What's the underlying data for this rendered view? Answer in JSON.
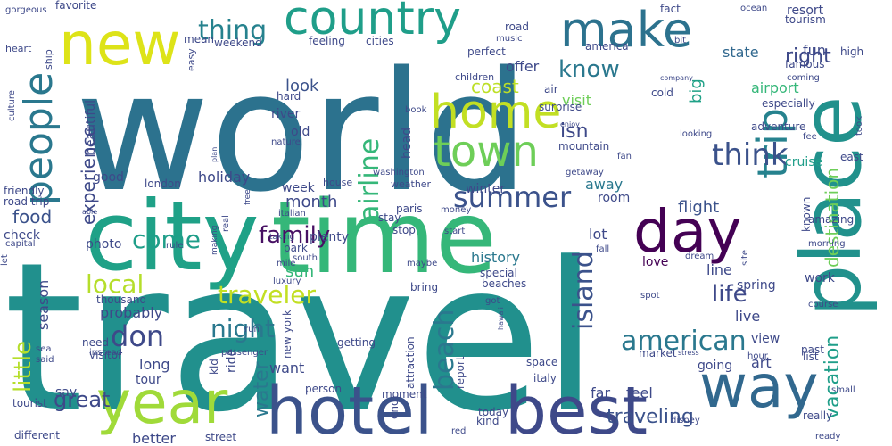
{
  "title": "Word cloud",
  "palette": [
    "#440154",
    "#482878",
    "#3e4989",
    "#31688e",
    "#26828e",
    "#1f9e89",
    "#35b779",
    "#6ece58",
    "#b5de2b",
    "#fde725"
  ],
  "words": [
    {
      "id": "travel",
      "text": "travel",
      "color": "#21908d"
    },
    {
      "id": "world",
      "text": "world",
      "color": "#2c728e"
    },
    {
      "id": "time",
      "text": "time",
      "color": "#35b779"
    },
    {
      "id": "city",
      "text": "city",
      "color": "#1fa187"
    },
    {
      "id": "place",
      "text": "place",
      "color": "#21918c"
    },
    {
      "id": "hotel",
      "text": "hotel",
      "color": "#3b528b"
    },
    {
      "id": "best",
      "text": "best",
      "color": "#3e4989"
    },
    {
      "id": "year",
      "text": "year",
      "color": "#a0da39"
    },
    {
      "id": "way",
      "text": "way",
      "color": "#31688e"
    },
    {
      "id": "day",
      "text": "day",
      "color": "#440154"
    },
    {
      "id": "new",
      "text": "new",
      "color": "#dde318"
    },
    {
      "id": "country",
      "text": "country",
      "color": "#1f9e89"
    },
    {
      "id": "make",
      "text": "make",
      "color": "#2c728e"
    },
    {
      "id": "home",
      "text": "home",
      "color": "#c2df23"
    },
    {
      "id": "town",
      "text": "town",
      "color": "#6ece58"
    },
    {
      "id": "people",
      "text": "people",
      "color": "#2a788e"
    },
    {
      "id": "trip",
      "text": "trip",
      "color": "#26828e"
    },
    {
      "id": "thing",
      "text": "thing",
      "color": "#26828e"
    },
    {
      "id": "know",
      "text": "know",
      "color": "#2a788e"
    },
    {
      "id": "think",
      "text": "think",
      "color": "#3b528b"
    },
    {
      "id": "summer",
      "text": "summer",
      "color": "#3b528b"
    },
    {
      "id": "come",
      "text": "come",
      "color": "#1f9e89"
    },
    {
      "id": "family",
      "text": "family",
      "color": "#471063"
    },
    {
      "id": "local",
      "text": "local",
      "color": "#b5de2b"
    },
    {
      "id": "american",
      "text": "american",
      "color": "#2a788e"
    },
    {
      "id": "don",
      "text": "don",
      "color": "#3e4989"
    },
    {
      "id": "night",
      "text": "night",
      "color": "#2a788e"
    },
    {
      "id": "traveler",
      "text": "traveler",
      "color": "#c2df23"
    },
    {
      "id": "beach",
      "text": "beach",
      "color": "#2a788e"
    },
    {
      "id": "island",
      "text": "island",
      "color": "#3b528b"
    },
    {
      "id": "airline",
      "text": "airline",
      "color": "#35b779"
    },
    {
      "id": "experience",
      "text": "experience",
      "color": "#3e4989"
    },
    {
      "id": "destination",
      "text": "destination",
      "color": "#6ece58"
    },
    {
      "id": "vacation",
      "text": "vacation",
      "color": "#1f9e89"
    },
    {
      "id": "life",
      "text": "life",
      "color": "#3e4989"
    },
    {
      "id": "little",
      "text": "little",
      "color": "#b5de2b"
    },
    {
      "id": "water",
      "text": "water",
      "color": "#2a788e"
    },
    {
      "id": "great",
      "text": "great",
      "color": "#3e4989"
    },
    {
      "id": "food",
      "text": "food",
      "color": "#3b528b"
    },
    {
      "id": "coast",
      "text": "coast",
      "color": "#bddf26"
    },
    {
      "id": "isn",
      "text": "isn",
      "color": "#3e4989"
    },
    {
      "id": "right",
      "text": "right",
      "color": "#3e4989"
    },
    {
      "id": "traveling",
      "text": "traveling",
      "color": "#3b528b"
    },
    {
      "id": "month",
      "text": "month",
      "color": "#3e4989"
    },
    {
      "id": "look",
      "text": "look",
      "color": "#3b528b"
    },
    {
      "id": "history",
      "text": "history",
      "color": "#2a788e"
    },
    {
      "id": "flight",
      "text": "flight",
      "color": "#3b528b"
    },
    {
      "id": "state",
      "text": "state",
      "color": "#31688e"
    },
    {
      "id": "airport",
      "text": "airport",
      "color": "#35b779"
    },
    {
      "id": "resort",
      "text": "resort",
      "color": "#3e4989"
    },
    {
      "id": "fun",
      "text": "fun",
      "color": "#3e4989"
    },
    {
      "id": "big",
      "text": "big",
      "color": "#1fa187"
    },
    {
      "id": "offer",
      "text": "offer",
      "color": "#3e4989"
    },
    {
      "id": "visit",
      "text": "visit",
      "color": "#6ece58"
    },
    {
      "id": "holiday",
      "text": "holiday",
      "color": "#3e4989"
    },
    {
      "id": "away",
      "text": "away",
      "color": "#2a788e"
    },
    {
      "id": "cruise",
      "text": "cruise",
      "color": "#1f9e89"
    },
    {
      "id": "season",
      "text": "season",
      "color": "#3e4989"
    },
    {
      "id": "probably",
      "text": "probably",
      "color": "#3e4989"
    },
    {
      "id": "long",
      "text": "long",
      "color": "#3e4989"
    },
    {
      "id": "better",
      "text": "better",
      "color": "#3e4989"
    },
    {
      "id": "tour",
      "text": "tour",
      "color": "#3e4989"
    },
    {
      "id": "sun",
      "text": "sun",
      "color": "#35b779"
    },
    {
      "id": "park",
      "text": "park",
      "color": "#3e4989"
    },
    {
      "id": "lot",
      "text": "lot",
      "color": "#3e4989"
    },
    {
      "id": "love",
      "text": "love",
      "color": "#440154"
    },
    {
      "id": "spring",
      "text": "spring",
      "color": "#3e4989"
    },
    {
      "id": "line",
      "text": "line",
      "color": "#3e4989"
    },
    {
      "id": "live",
      "text": "live",
      "color": "#3e4989"
    },
    {
      "id": "view",
      "text": "view",
      "color": "#3e4989"
    },
    {
      "id": "art",
      "text": "art",
      "color": "#3e4989"
    },
    {
      "id": "going",
      "text": "going",
      "color": "#3e4989"
    },
    {
      "id": "feel",
      "text": "feel",
      "color": "#3e4989"
    },
    {
      "id": "far",
      "text": "far",
      "color": "#3e4989"
    },
    {
      "id": "say",
      "text": "say",
      "color": "#3e4989"
    },
    {
      "id": "want",
      "text": "want",
      "color": "#3e4989"
    },
    {
      "id": "week",
      "text": "week",
      "color": "#3e4989"
    },
    {
      "id": "plenty",
      "text": "plenty",
      "color": "#3e4989"
    },
    {
      "id": "photo",
      "text": "photo",
      "color": "#3e4989"
    },
    {
      "id": "good",
      "text": "good",
      "color": "#3e4989"
    },
    {
      "id": "beautiful",
      "text": "beautiful",
      "color": "#3e4989"
    },
    {
      "id": "winter",
      "text": "winter",
      "color": "#3e4989"
    },
    {
      "id": "room",
      "text": "room",
      "color": "#3e4989"
    },
    {
      "id": "mountain",
      "text": "mountain",
      "color": "#3e4989"
    },
    {
      "id": "adventure",
      "text": "adventure",
      "color": "#3e4989"
    },
    {
      "id": "especially",
      "text": "especially",
      "color": "#3e4989"
    },
    {
      "id": "famous",
      "text": "famous",
      "color": "#3e4989"
    },
    {
      "id": "tourism",
      "text": "tourism",
      "color": "#3e4989"
    },
    {
      "id": "high",
      "text": "high",
      "color": "#3e4989"
    },
    {
      "id": "america",
      "text": "america",
      "color": "#3e4989"
    },
    {
      "id": "weekend",
      "text": "weekend",
      "color": "#3e4989"
    },
    {
      "id": "mean",
      "text": "mean",
      "color": "#3e4989"
    },
    {
      "id": "feeling",
      "text": "feeling",
      "color": "#3e4989"
    },
    {
      "id": "cities",
      "text": "cities",
      "color": "#3e4989"
    },
    {
      "id": "perfect",
      "text": "perfect",
      "color": "#3e4989"
    },
    {
      "id": "music",
      "text": "music",
      "color": "#3e4989"
    },
    {
      "id": "favorite",
      "text": "favorite",
      "color": "#3e4989"
    },
    {
      "id": "gorgeous",
      "text": "gorgeous",
      "color": "#3e4989"
    },
    {
      "id": "heart",
      "text": "heart",
      "color": "#3e4989"
    },
    {
      "id": "ship",
      "text": "ship",
      "color": "#3e4989"
    },
    {
      "id": "easy",
      "text": "easy",
      "color": "#3e4989"
    },
    {
      "id": "road",
      "text": "road",
      "color": "#3e4989"
    },
    {
      "id": "fact",
      "text": "fact",
      "color": "#3e4989"
    },
    {
      "id": "ocean",
      "text": "ocean",
      "color": "#3e4989"
    },
    {
      "id": "bit",
      "text": "bit",
      "color": "#3e4989"
    },
    {
      "id": "children",
      "text": "children",
      "color": "#3e4989"
    },
    {
      "id": "air",
      "text": "air",
      "color": "#3e4989"
    },
    {
      "id": "surprise",
      "text": "surprise",
      "color": "#3e4989"
    },
    {
      "id": "company",
      "text": "company",
      "color": "#3e4989"
    },
    {
      "id": "coming",
      "text": "coming",
      "color": "#3e4989"
    },
    {
      "id": "cold",
      "text": "cold",
      "color": "#3e4989"
    },
    {
      "id": "took",
      "text": "took",
      "color": "#3e4989"
    },
    {
      "id": "enjoy",
      "text": "enjoy",
      "color": "#3e4989"
    },
    {
      "id": "book",
      "text": "book",
      "color": "#3e4989"
    },
    {
      "id": "hard",
      "text": "hard",
      "color": "#3e4989"
    },
    {
      "id": "river",
      "text": "river",
      "color": "#3e4989"
    },
    {
      "id": "old",
      "text": "old",
      "color": "#3e4989"
    },
    {
      "id": "nature",
      "text": "nature",
      "color": "#3e4989"
    },
    {
      "id": "culture",
      "text": "culture",
      "color": "#3e4989"
    },
    {
      "id": "plan",
      "text": "plan",
      "color": "#3e4989"
    },
    {
      "id": "head",
      "text": "head",
      "color": "#3e4989"
    },
    {
      "id": "looking",
      "text": "looking",
      "color": "#3e4989"
    },
    {
      "id": "fee",
      "text": "fee",
      "color": "#3e4989"
    },
    {
      "id": "east",
      "text": "east",
      "color": "#3e4989"
    },
    {
      "id": "fan",
      "text": "fan",
      "color": "#3e4989"
    },
    {
      "id": "getaway",
      "text": "getaway",
      "color": "#3e4989"
    },
    {
      "id": "washington",
      "text": "washington",
      "color": "#3e4989"
    },
    {
      "id": "london",
      "text": "london",
      "color": "#3e4989"
    },
    {
      "id": "friendly",
      "text": "friendly",
      "color": "#3e4989"
    },
    {
      "id": "road-trip",
      "text": "road trip",
      "color": "#3e4989"
    },
    {
      "id": "free",
      "text": "free",
      "color": "#3e4989"
    },
    {
      "id": "italian",
      "text": "italian",
      "color": "#3e4989"
    },
    {
      "id": "house",
      "text": "house",
      "color": "#3e4989"
    },
    {
      "id": "weather",
      "text": "weather",
      "color": "#3e4989"
    },
    {
      "id": "able",
      "text": "able",
      "color": "#3e4989"
    },
    {
      "id": "check",
      "text": "check",
      "color": "#3e4989"
    },
    {
      "id": "real",
      "text": "real",
      "color": "#3e4989"
    },
    {
      "id": "making",
      "text": "making",
      "color": "#3e4989"
    },
    {
      "id": "taking",
      "text": "taking",
      "color": "#3e4989"
    },
    {
      "id": "paris",
      "text": "paris",
      "color": "#3e4989"
    },
    {
      "id": "money",
      "text": "money",
      "color": "#3e4989"
    },
    {
      "id": "stay",
      "text": "stay",
      "color": "#3e4989"
    },
    {
      "id": "stop",
      "text": "stop",
      "color": "#3e4989"
    },
    {
      "id": "start",
      "text": "start",
      "color": "#3e4989"
    },
    {
      "id": "known",
      "text": "known",
      "color": "#3e4989"
    },
    {
      "id": "amazing",
      "text": "amazing",
      "color": "#3e4989"
    },
    {
      "id": "site",
      "text": "site",
      "color": "#3e4989"
    },
    {
      "id": "morning",
      "text": "morning",
      "color": "#3e4989"
    },
    {
      "id": "fall",
      "text": "fall",
      "color": "#3e4989"
    },
    {
      "id": "rule",
      "text": "rule",
      "color": "#3e4989"
    },
    {
      "id": "capital",
      "text": "capital",
      "color": "#3e4989"
    },
    {
      "id": "south",
      "text": "south",
      "color": "#3e4989"
    },
    {
      "id": "mile",
      "text": "mile",
      "color": "#3e4989"
    },
    {
      "id": "luxury",
      "text": "luxury",
      "color": "#3e4989"
    },
    {
      "id": "maybe",
      "text": "maybe",
      "color": "#3e4989"
    },
    {
      "id": "let",
      "text": "let",
      "color": "#3e4989"
    },
    {
      "id": "dream",
      "text": "dream",
      "color": "#3e4989"
    },
    {
      "id": "work",
      "text": "work",
      "color": "#3e4989"
    },
    {
      "id": "bring",
      "text": "bring",
      "color": "#3e4989"
    },
    {
      "id": "special",
      "text": "special",
      "color": "#3e4989"
    },
    {
      "id": "beaches",
      "text": "beaches",
      "color": "#3e4989"
    },
    {
      "id": "got",
      "text": "got",
      "color": "#3e4989"
    },
    {
      "id": "spot",
      "text": "spot",
      "color": "#3e4989"
    },
    {
      "id": "course",
      "text": "course",
      "color": "#3e4989"
    },
    {
      "id": "thousand",
      "text": "thousand",
      "color": "#3e4989"
    },
    {
      "id": "passenger",
      "text": "passenger",
      "color": "#3e4989"
    },
    {
      "id": "new-york",
      "text": "new york",
      "color": "#3e4989"
    },
    {
      "id": "hawaii",
      "text": "hawaii",
      "color": "#3e4989"
    },
    {
      "id": "past",
      "text": "past",
      "color": "#3e4989"
    },
    {
      "id": "stress",
      "text": "stress",
      "color": "#3e4989"
    },
    {
      "id": "hour",
      "text": "hour",
      "color": "#3e4989"
    },
    {
      "id": "list",
      "text": "list",
      "color": "#3e4989"
    },
    {
      "id": "sea",
      "text": "sea",
      "color": "#3e4989"
    },
    {
      "id": "said",
      "text": "said",
      "color": "#3e4989"
    },
    {
      "id": "instead",
      "text": "instead",
      "color": "#3e4989"
    },
    {
      "id": "need",
      "text": "need",
      "color": "#3e4989"
    },
    {
      "id": "visitor",
      "text": "visitor",
      "color": "#3e4989"
    },
    {
      "id": "kid",
      "text": "kid",
      "color": "#3e4989"
    },
    {
      "id": "ride",
      "text": "ride",
      "color": "#3e4989"
    },
    {
      "id": "getting",
      "text": "getting",
      "color": "#3e4989"
    },
    {
      "id": "attraction",
      "text": "attraction",
      "color": "#3e4989"
    },
    {
      "id": "report",
      "text": "report",
      "color": "#3e4989"
    },
    {
      "id": "space",
      "text": "space",
      "color": "#3e4989"
    },
    {
      "id": "market",
      "text": "market",
      "color": "#3e4989"
    },
    {
      "id": "small",
      "text": "small",
      "color": "#3e4989"
    },
    {
      "id": "italy",
      "text": "italy",
      "color": "#3e4989"
    },
    {
      "id": "person",
      "text": "person",
      "color": "#3e4989"
    },
    {
      "id": "moment",
      "text": "moment",
      "color": "#3e4989"
    },
    {
      "id": "end",
      "text": "end",
      "color": "#3e4989"
    },
    {
      "id": "today",
      "text": "today",
      "color": "#3e4989"
    },
    {
      "id": "kind",
      "text": "kind",
      "color": "#3e4989"
    },
    {
      "id": "really",
      "text": "really",
      "color": "#3e4989"
    },
    {
      "id": "disney",
      "text": "disney",
      "color": "#3e4989"
    },
    {
      "id": "tourist",
      "text": "tourist",
      "color": "#3e4989"
    },
    {
      "id": "different",
      "text": "different",
      "color": "#3e4989"
    },
    {
      "id": "street",
      "text": "street",
      "color": "#3e4989"
    },
    {
      "id": "red",
      "text": "red",
      "color": "#3e4989"
    },
    {
      "id": "ready",
      "text": "ready",
      "color": "#3e4989"
    },
    {
      "id": "run",
      "text": "run",
      "color": "#3e4989"
    }
  ]
}
